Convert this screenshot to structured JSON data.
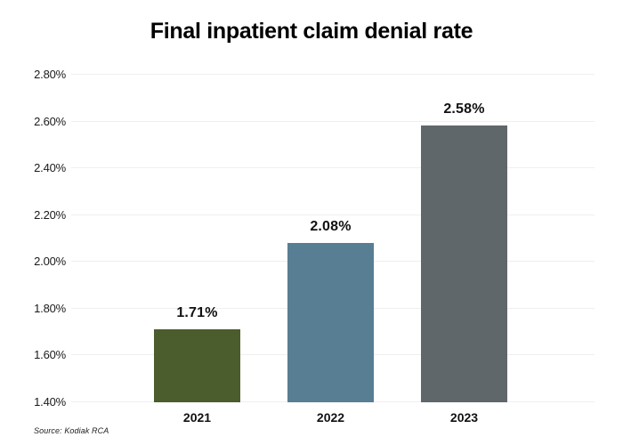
{
  "title": "Final inpatient claim denial rate",
  "source_note": "Source: Kodiak RCA",
  "colors": {
    "background": "#ffffff",
    "gridline": "#efefef",
    "title_text": "#000000",
    "axis_text": "#1a1a1a",
    "bar_2021": "#4b5c2d",
    "bar_2022": "#587e93",
    "bar_2023": "#60676b"
  },
  "chart_data": {
    "type": "bar",
    "title": "Final inpatient claim denial rate",
    "categories": [
      "2021",
      "2022",
      "2023"
    ],
    "values": [
      1.71,
      2.08,
      2.58
    ],
    "value_labels": [
      "1.71%",
      "2.08%",
      "2.58%"
    ],
    "bar_colors": [
      "#4b5c2d",
      "#587e93",
      "#60676b"
    ],
    "y_ticks": [
      "2.80%",
      "2.60%",
      "2.40%",
      "2.20%",
      "2.00%",
      "1.80%",
      "1.60%",
      "1.40%"
    ],
    "ylim": [
      1.4,
      2.8
    ],
    "y_tick_step": 0.2,
    "xlabel": "",
    "ylabel": "",
    "grid": "horizontal-only",
    "legend": "none",
    "source": "Source: Kodiak RCA"
  }
}
